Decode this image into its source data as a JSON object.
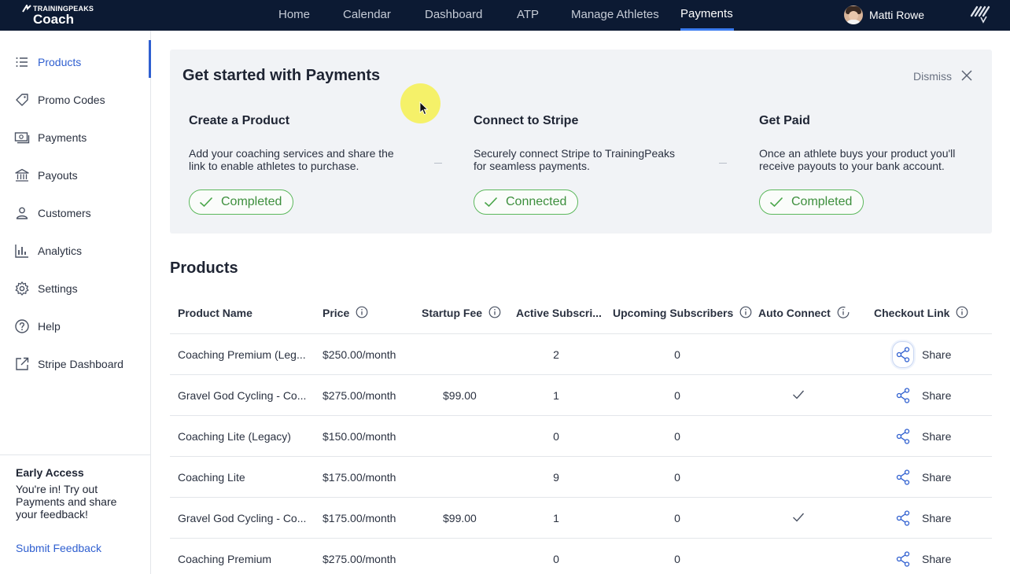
{
  "brand": {
    "top": "TRAININGPEAKS",
    "bottom": "Coach"
  },
  "nav": [
    "Home",
    "Calendar",
    "Dashboard",
    "ATP",
    "Manage Athletes",
    "Payments"
  ],
  "nav_active": "Payments",
  "user": {
    "name": "Matti Rowe"
  },
  "sidebar": {
    "items": [
      {
        "label": "Products",
        "icon": "list-icon"
      },
      {
        "label": "Promo Codes",
        "icon": "tag-icon"
      },
      {
        "label": "Payments",
        "icon": "cash-icon"
      },
      {
        "label": "Payouts",
        "icon": "bank-icon"
      },
      {
        "label": "Customers",
        "icon": "person-icon"
      },
      {
        "label": "Analytics",
        "icon": "bar-chart-icon"
      },
      {
        "label": "Settings",
        "icon": "gear-icon"
      },
      {
        "label": "Help",
        "icon": "question-icon"
      },
      {
        "label": "Stripe Dashboard",
        "icon": "external-link-icon"
      }
    ],
    "early_access": {
      "title": "Early Access",
      "text": "You're in! Try out Payments and share your feedback!",
      "link": "Submit Feedback"
    }
  },
  "get_started": {
    "title": "Get started with Payments",
    "dismiss": "Dismiss",
    "steps": [
      {
        "title": "Create a Product",
        "desc": "Add your coaching services and share the link to enable athletes to purchase.",
        "status": "Completed"
      },
      {
        "title": "Connect to Stripe",
        "desc": "Securely connect Stripe to TrainingPeaks for seamless payments.",
        "status": "Connected"
      },
      {
        "title": "Get Paid",
        "desc": "Once an athlete buys your product you'll receive payouts to your bank account.",
        "status": "Completed"
      }
    ]
  },
  "products": {
    "title": "Products",
    "columns": {
      "name": "Product Name",
      "price": "Price",
      "startup_fee": "Startup Fee",
      "active": "Active Subscri...",
      "upcoming": "Upcoming Subscribers",
      "auto_connect": "Auto Connect",
      "checkout": "Checkout Link"
    },
    "rows": [
      {
        "name": "Coaching Premium (Leg...",
        "price": "$250.00/month",
        "startup_fee": "",
        "active": "2",
        "upcoming": "0",
        "auto_connect": false,
        "share": "Share"
      },
      {
        "name": "Gravel God Cycling - Co...",
        "price": "$275.00/month",
        "startup_fee": "$99.00",
        "active": "1",
        "upcoming": "0",
        "auto_connect": true,
        "share": "Share"
      },
      {
        "name": "Coaching Lite (Legacy)",
        "price": "$150.00/month",
        "startup_fee": "",
        "active": "0",
        "upcoming": "0",
        "auto_connect": false,
        "share": "Share"
      },
      {
        "name": "Coaching Lite",
        "price": "$175.00/month",
        "startup_fee": "",
        "active": "9",
        "upcoming": "0",
        "auto_connect": false,
        "share": "Share"
      },
      {
        "name": "Gravel God Cycling - Co...",
        "price": "$175.00/month",
        "startup_fee": "$99.00",
        "active": "1",
        "upcoming": "0",
        "auto_connect": true,
        "share": "Share"
      },
      {
        "name": "Coaching Premium",
        "price": "$275.00/month",
        "startup_fee": "",
        "active": "0",
        "upcoming": "0",
        "auto_connect": false,
        "share": "Share"
      }
    ]
  },
  "colors": {
    "nav_bg": "#0c1a33",
    "accent": "#2f5fd0",
    "success": "#5cb85c",
    "panel_bg": "#f1f3f6"
  }
}
